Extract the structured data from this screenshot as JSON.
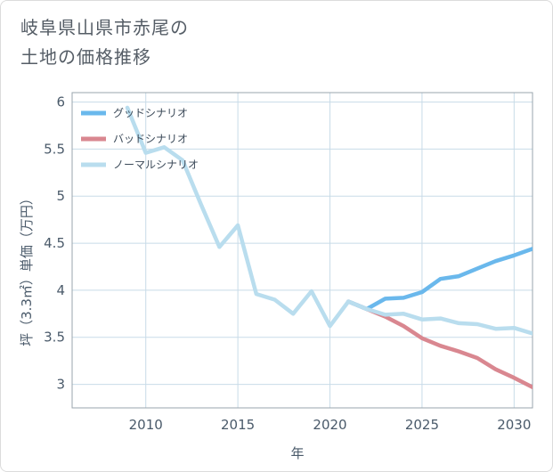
{
  "title": {
    "line1": "岐阜県山県市赤尾の",
    "line2": "土地の価格推移"
  },
  "colors": {
    "good": "#6ab8ec",
    "bad": "#d98790",
    "normal": "#b9ddee",
    "grid": "#c8dbe8",
    "frame": "#9aa4ac"
  },
  "chart_data": {
    "type": "line",
    "xlabel": "年",
    "ylabel": "坪（3.3㎡）単価（万円）",
    "xlim": [
      2006,
      2031
    ],
    "ylim": [
      2.75,
      6.1
    ],
    "x_ticks": [
      2010,
      2015,
      2020,
      2025,
      2030
    ],
    "y_ticks": [
      3,
      3.5,
      4,
      4.5,
      5,
      5.5,
      6
    ],
    "grid": true,
    "legend_position": "top-left",
    "series": [
      {
        "name": "グッドシナリオ",
        "color": "#6ab8ec",
        "x": [
          2021,
          2022,
          2023,
          2024,
          2025,
          2026,
          2027,
          2028,
          2029,
          2030,
          2031
        ],
        "y": [
          3.88,
          3.8,
          3.91,
          3.92,
          3.98,
          4.12,
          4.15,
          4.23,
          4.31,
          4.37,
          4.44
        ]
      },
      {
        "name": "バッドシナリオ",
        "color": "#d98790",
        "x": [
          2021,
          2022,
          2023,
          2024,
          2025,
          2026,
          2027,
          2028,
          2029,
          2030,
          2031
        ],
        "y": [
          3.88,
          3.8,
          3.72,
          3.62,
          3.49,
          3.41,
          3.35,
          3.28,
          3.16,
          3.07,
          2.97
        ]
      },
      {
        "name": "ノーマルシナリオ",
        "color": "#b9ddee",
        "x": [
          2009,
          2010,
          2011,
          2012,
          2013,
          2014,
          2015,
          2016,
          2017,
          2018,
          2019,
          2020,
          2021,
          2022,
          2023,
          2024,
          2025,
          2026,
          2027,
          2028,
          2029,
          2030,
          2031
        ],
        "y": [
          5.94,
          5.46,
          5.52,
          5.38,
          4.91,
          4.46,
          4.69,
          3.96,
          3.9,
          3.75,
          3.99,
          3.62,
          3.88,
          3.8,
          3.74,
          3.75,
          3.69,
          3.7,
          3.65,
          3.64,
          3.59,
          3.6,
          3.54
        ]
      }
    ]
  }
}
